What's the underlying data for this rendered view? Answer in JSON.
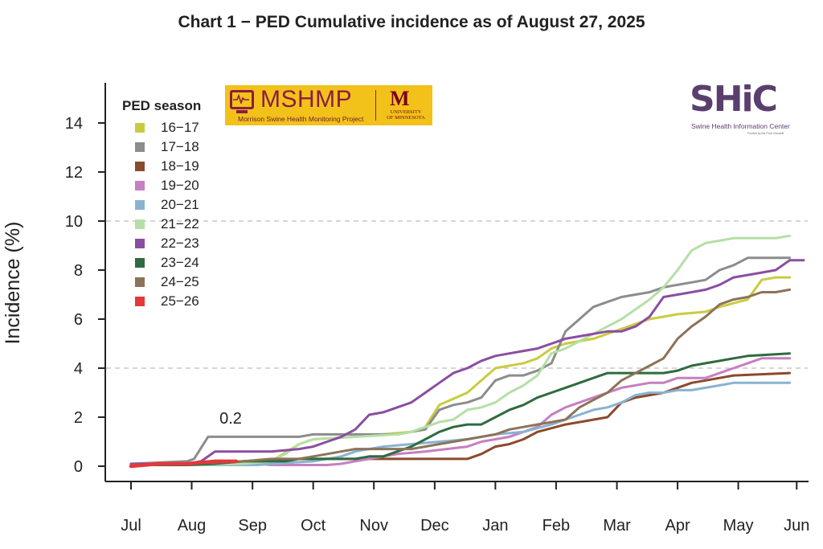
{
  "chart_data": {
    "type": "line",
    "title": "Chart 1 − PED Cumulative incidence as of August 27, 2025",
    "ylabel": "Incidence (%)",
    "xlabel": "",
    "ylim": [
      0,
      15
    ],
    "yticks": [
      0,
      2,
      4,
      6,
      8,
      10,
      12,
      14
    ],
    "xlim": [
      0,
      48
    ],
    "x_ticks": [
      {
        "label": "Jul",
        "x": 0
      },
      {
        "label": "Aug",
        "x": 4.33
      },
      {
        "label": "Sep",
        "x": 8.67
      },
      {
        "label": "Oct",
        "x": 13
      },
      {
        "label": "Nov",
        "x": 17.33
      },
      {
        "label": "Dec",
        "x": 21.67
      },
      {
        "label": "Jan",
        "x": 26
      },
      {
        "label": "Feb",
        "x": 30.33
      },
      {
        "label": "Mar",
        "x": 34.67
      },
      {
        "label": "Apr",
        "x": 39
      },
      {
        "label": "May",
        "x": 43.33
      },
      {
        "label": "Jun",
        "x": 47.5
      }
    ],
    "reference_lines": [
      4,
      10
    ],
    "grid": false,
    "legend": {
      "title": "PED season",
      "position": "top-left"
    },
    "annotations": [
      {
        "text": "0.2",
        "x": 7,
        "y": 1.9
      }
    ],
    "x_unit": "weeks",
    "series": [
      {
        "name": "16−17",
        "color": "#c9cc3f",
        "points": [
          [
            0,
            0.1
          ],
          [
            4,
            0.1
          ],
          [
            8,
            0.1
          ],
          [
            10,
            0.2
          ],
          [
            12,
            0.9
          ],
          [
            13,
            1.1
          ],
          [
            16,
            1.2
          ],
          [
            20,
            1.4
          ],
          [
            21,
            1.6
          ],
          [
            22,
            2.5
          ],
          [
            24,
            3.0
          ],
          [
            26,
            4.0
          ],
          [
            27,
            4.1
          ],
          [
            28,
            4.2
          ],
          [
            29,
            4.4
          ],
          [
            30,
            4.8
          ],
          [
            31,
            5.0
          ],
          [
            33,
            5.2
          ],
          [
            35,
            5.6
          ],
          [
            36,
            5.8
          ],
          [
            37,
            6.0
          ],
          [
            38,
            6.1
          ],
          [
            39,
            6.2
          ],
          [
            41,
            6.3
          ],
          [
            42,
            6.5
          ],
          [
            44,
            6.8
          ],
          [
            45,
            7.6
          ],
          [
            46,
            7.7
          ],
          [
            47,
            7.7
          ]
        ]
      },
      {
        "name": "17−18",
        "color": "#8c8c8c",
        "points": [
          [
            0,
            0.1
          ],
          [
            4,
            0.2
          ],
          [
            4.5,
            0.3
          ],
          [
            5.5,
            1.2
          ],
          [
            12,
            1.2
          ],
          [
            13,
            1.3
          ],
          [
            19,
            1.3
          ],
          [
            20,
            1.4
          ],
          [
            21,
            1.5
          ],
          [
            22,
            2.3
          ],
          [
            23,
            2.5
          ],
          [
            24,
            2.6
          ],
          [
            25,
            2.8
          ],
          [
            26,
            3.5
          ],
          [
            27,
            3.7
          ],
          [
            28,
            3.7
          ],
          [
            29,
            3.9
          ],
          [
            30,
            4.2
          ],
          [
            31,
            5.5
          ],
          [
            32,
            6.0
          ],
          [
            33,
            6.5
          ],
          [
            34,
            6.7
          ],
          [
            35,
            6.9
          ],
          [
            37,
            7.1
          ],
          [
            38,
            7.3
          ],
          [
            40,
            7.5
          ],
          [
            41,
            7.6
          ],
          [
            42,
            8.0
          ],
          [
            43,
            8.2
          ],
          [
            44,
            8.5
          ],
          [
            47,
            8.5
          ]
        ]
      },
      {
        "name": "18−19",
        "color": "#8b4a2b",
        "points": [
          [
            0,
            0.05
          ],
          [
            4,
            0.1
          ],
          [
            8,
            0.2
          ],
          [
            12,
            0.3
          ],
          [
            16,
            0.3
          ],
          [
            24,
            0.3
          ],
          [
            25,
            0.5
          ],
          [
            26,
            0.8
          ],
          [
            27,
            0.9
          ],
          [
            28,
            1.1
          ],
          [
            29,
            1.4
          ],
          [
            31,
            1.7
          ],
          [
            32,
            1.8
          ],
          [
            34,
            2.0
          ],
          [
            35,
            2.6
          ],
          [
            36,
            2.8
          ],
          [
            37,
            2.9
          ],
          [
            38,
            3.0
          ],
          [
            39,
            3.2
          ],
          [
            40,
            3.4
          ],
          [
            41,
            3.5
          ],
          [
            42,
            3.6
          ],
          [
            43,
            3.7
          ],
          [
            47,
            3.8
          ]
        ]
      },
      {
        "name": "19−20",
        "color": "#c67fc0",
        "points": [
          [
            0,
            0.05
          ],
          [
            4,
            0.1
          ],
          [
            7,
            0.1
          ],
          [
            9,
            0.1
          ],
          [
            10,
            0.05
          ],
          [
            14,
            0.05
          ],
          [
            15,
            0.1
          ],
          [
            16,
            0.2
          ],
          [
            17,
            0.3
          ],
          [
            19,
            0.5
          ],
          [
            21,
            0.6
          ],
          [
            24,
            0.8
          ],
          [
            25,
            1.0
          ],
          [
            26,
            1.1
          ],
          [
            27,
            1.2
          ],
          [
            28,
            1.4
          ],
          [
            29,
            1.6
          ],
          [
            30,
            2.1
          ],
          [
            31,
            2.4
          ],
          [
            32,
            2.6
          ],
          [
            33,
            2.8
          ],
          [
            34,
            3.0
          ],
          [
            35,
            3.2
          ],
          [
            36,
            3.3
          ],
          [
            37,
            3.4
          ],
          [
            38,
            3.4
          ],
          [
            39,
            3.6
          ],
          [
            40,
            3.6
          ],
          [
            41,
            3.6
          ],
          [
            42,
            3.8
          ],
          [
            43,
            4.0
          ],
          [
            44,
            4.2
          ],
          [
            45,
            4.4
          ],
          [
            47,
            4.4
          ]
        ]
      },
      {
        "name": "20−21",
        "color": "#89b3d1",
        "points": [
          [
            0,
            0.05
          ],
          [
            4,
            0.05
          ],
          [
            7,
            0.05
          ],
          [
            9,
            0.05
          ],
          [
            10,
            0.1
          ],
          [
            13,
            0.2
          ],
          [
            14,
            0.3
          ],
          [
            15,
            0.4
          ],
          [
            16,
            0.6
          ],
          [
            17,
            0.7
          ],
          [
            18,
            0.8
          ],
          [
            20,
            0.9
          ],
          [
            22,
            1.0
          ],
          [
            24,
            1.1
          ],
          [
            26,
            1.3
          ],
          [
            28,
            1.4
          ],
          [
            30,
            1.7
          ],
          [
            32,
            2.1
          ],
          [
            33,
            2.3
          ],
          [
            34,
            2.4
          ],
          [
            35,
            2.6
          ],
          [
            36,
            2.9
          ],
          [
            37,
            3.0
          ],
          [
            38,
            3.0
          ],
          [
            39,
            3.1
          ],
          [
            40,
            3.1
          ],
          [
            41,
            3.2
          ],
          [
            42,
            3.3
          ],
          [
            43,
            3.4
          ],
          [
            47,
            3.4
          ]
        ]
      },
      {
        "name": "21−22",
        "color": "#b5dfa7",
        "points": [
          [
            0,
            0.05
          ],
          [
            4,
            0.05
          ],
          [
            8,
            0.1
          ],
          [
            10,
            0.2
          ],
          [
            11,
            0.5
          ],
          [
            12,
            0.9
          ],
          [
            13,
            1.1
          ],
          [
            19,
            1.3
          ],
          [
            20,
            1.4
          ],
          [
            21,
            1.6
          ],
          [
            22,
            1.8
          ],
          [
            23,
            1.9
          ],
          [
            24,
            2.3
          ],
          [
            25,
            2.4
          ],
          [
            26,
            2.6
          ],
          [
            27,
            3.0
          ],
          [
            28,
            3.3
          ],
          [
            29,
            3.7
          ],
          [
            30,
            4.6
          ],
          [
            31,
            4.8
          ],
          [
            32,
            5.1
          ],
          [
            33,
            5.4
          ],
          [
            34,
            5.7
          ],
          [
            35,
            6.0
          ],
          [
            36,
            6.4
          ],
          [
            37,
            6.8
          ],
          [
            38,
            7.3
          ],
          [
            39,
            8.0
          ],
          [
            40,
            8.8
          ],
          [
            41,
            9.1
          ],
          [
            42,
            9.2
          ],
          [
            43,
            9.3
          ],
          [
            46,
            9.3
          ],
          [
            47,
            9.4
          ]
        ]
      },
      {
        "name": "22−23",
        "color": "#8a4ea1",
        "points": [
          [
            0,
            0.1
          ],
          [
            4,
            0.1
          ],
          [
            5,
            0.2
          ],
          [
            6,
            0.6
          ],
          [
            10,
            0.6
          ],
          [
            12,
            0.7
          ],
          [
            13,
            0.8
          ],
          [
            14,
            1.0
          ],
          [
            15,
            1.2
          ],
          [
            16,
            1.5
          ],
          [
            17,
            2.1
          ],
          [
            18,
            2.2
          ],
          [
            19,
            2.4
          ],
          [
            20,
            2.6
          ],
          [
            21,
            3.0
          ],
          [
            22,
            3.4
          ],
          [
            23,
            3.8
          ],
          [
            24,
            4.0
          ],
          [
            25,
            4.3
          ],
          [
            26,
            4.5
          ],
          [
            27,
            4.6
          ],
          [
            28,
            4.7
          ],
          [
            29,
            4.8
          ],
          [
            30,
            5.0
          ],
          [
            31,
            5.2
          ],
          [
            32,
            5.3
          ],
          [
            33,
            5.4
          ],
          [
            34,
            5.5
          ],
          [
            35,
            5.5
          ],
          [
            36,
            5.7
          ],
          [
            37,
            6.1
          ],
          [
            38,
            6.9
          ],
          [
            39,
            7.0
          ],
          [
            40,
            7.1
          ],
          [
            41,
            7.2
          ],
          [
            42,
            7.4
          ],
          [
            43,
            7.7
          ],
          [
            44,
            7.8
          ],
          [
            45,
            7.9
          ],
          [
            46,
            8.0
          ],
          [
            47,
            8.4
          ],
          [
            48,
            8.4
          ]
        ]
      },
      {
        "name": "23−24",
        "color": "#2f6b40",
        "points": [
          [
            0,
            0.05
          ],
          [
            4,
            0.05
          ],
          [
            6,
            0.1
          ],
          [
            8,
            0.2
          ],
          [
            10,
            0.2
          ],
          [
            11,
            0.2
          ],
          [
            12,
            0.3
          ],
          [
            16,
            0.3
          ],
          [
            17,
            0.4
          ],
          [
            18,
            0.4
          ],
          [
            19,
            0.6
          ],
          [
            20,
            0.8
          ],
          [
            21,
            1.1
          ],
          [
            22,
            1.4
          ],
          [
            23,
            1.6
          ],
          [
            24,
            1.7
          ],
          [
            25,
            1.7
          ],
          [
            26,
            2.0
          ],
          [
            27,
            2.3
          ],
          [
            28,
            2.5
          ],
          [
            29,
            2.8
          ],
          [
            30,
            3.0
          ],
          [
            31,
            3.2
          ],
          [
            32,
            3.4
          ],
          [
            33,
            3.6
          ],
          [
            34,
            3.8
          ],
          [
            35,
            3.8
          ],
          [
            38,
            3.8
          ],
          [
            39,
            3.9
          ],
          [
            40,
            4.1
          ],
          [
            41,
            4.2
          ],
          [
            42,
            4.3
          ],
          [
            43,
            4.4
          ],
          [
            44,
            4.5
          ],
          [
            47,
            4.6
          ]
        ]
      },
      {
        "name": "24−25",
        "color": "#8c7358",
        "points": [
          [
            0,
            0.05
          ],
          [
            4,
            0.1
          ],
          [
            8,
            0.2
          ],
          [
            10,
            0.3
          ],
          [
            12,
            0.3
          ],
          [
            13,
            0.4
          ],
          [
            14,
            0.5
          ],
          [
            15,
            0.6
          ],
          [
            16,
            0.7
          ],
          [
            20,
            0.7
          ],
          [
            22,
            0.9
          ],
          [
            24,
            1.1
          ],
          [
            26,
            1.3
          ],
          [
            27,
            1.5
          ],
          [
            28,
            1.6
          ],
          [
            29,
            1.7
          ],
          [
            30,
            1.8
          ],
          [
            31,
            1.9
          ],
          [
            32,
            2.4
          ],
          [
            33,
            2.7
          ],
          [
            34,
            3.0
          ],
          [
            35,
            3.5
          ],
          [
            36,
            3.8
          ],
          [
            37,
            4.1
          ],
          [
            38,
            4.4
          ],
          [
            39,
            5.2
          ],
          [
            40,
            5.7
          ],
          [
            41,
            6.1
          ],
          [
            42,
            6.6
          ],
          [
            43,
            6.8
          ],
          [
            44,
            6.9
          ],
          [
            45,
            7.1
          ],
          [
            46,
            7.1
          ],
          [
            47,
            7.2
          ]
        ]
      },
      {
        "name": "25−26",
        "color": "#e6373b",
        "width": 4.5,
        "points": [
          [
            0,
            0.0
          ],
          [
            1,
            0.05
          ],
          [
            2,
            0.1
          ],
          [
            3,
            0.1
          ],
          [
            4,
            0.1
          ],
          [
            5,
            0.15
          ],
          [
            6,
            0.2
          ],
          [
            7,
            0.2
          ],
          [
            7.5,
            0.2
          ]
        ]
      }
    ]
  },
  "logos": {
    "mshmp_name": "MSHMP",
    "mshmp_subtitle": "Morrison Swine Health Monitoring Project",
    "umn_mark": "M",
    "umn_line1": "UNIVERSITY",
    "umn_line2": "OF MINNESOTA",
    "shic_mark": "SHiC",
    "shic_subtitle": "Swine Health Information Center",
    "shic_funded": "Funded by the Pork Checkoff"
  }
}
